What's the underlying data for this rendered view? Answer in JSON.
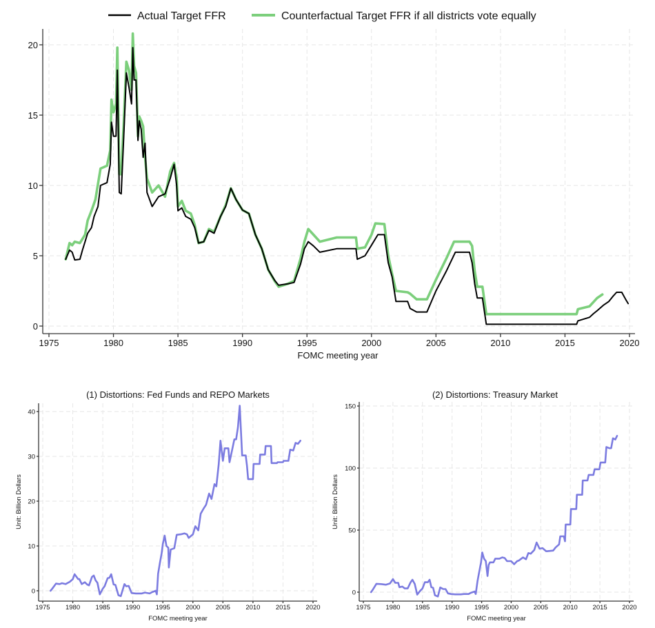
{
  "chart_data": [
    {
      "type": "line",
      "title": "",
      "xlabel": "FOMC meeting year",
      "ylabel": "",
      "xlim": [
        1975,
        2020
      ],
      "ylim": [
        0,
        20
      ],
      "xticks": [
        "1975",
        "1980",
        "1985",
        "1990",
        "1995",
        "2000",
        "2005",
        "2010",
        "2015",
        "2020"
      ],
      "yticks": [
        "0",
        "5",
        "10",
        "15",
        "20"
      ],
      "grid": true,
      "legend_position": "top",
      "series": [
        {
          "name": "Actual Target FFR",
          "color": "#000000",
          "x": [
            1976.3,
            1976.6,
            1976.8,
            1977.0,
            1977.4,
            1977.6,
            1977.8,
            1978.0,
            1978.3,
            1978.5,
            1978.8,
            1979.0,
            1979.5,
            1979.75,
            1979.85,
            1980.0,
            1980.2,
            1980.3,
            1980.45,
            1980.6,
            1980.8,
            1981.0,
            1981.2,
            1981.4,
            1981.5,
            1981.6,
            1981.75,
            1981.9,
            1982.0,
            1982.15,
            1982.3,
            1982.45,
            1982.6,
            1983.0,
            1983.5,
            1984.0,
            1984.4,
            1984.7,
            1984.9,
            1985.0,
            1985.3,
            1985.6,
            1986.0,
            1986.3,
            1986.6,
            1987.0,
            1987.4,
            1987.8,
            1988.3,
            1988.7,
            1989.1,
            1989.5,
            1990.0,
            1990.5,
            1991.0,
            1991.5,
            1992.0,
            1992.5,
            1992.8,
            1993.5,
            1994.0,
            1994.5,
            1994.8,
            1995.1,
            1995.5,
            1996.0,
            1997.3,
            1998.8,
            1998.9,
            1999.5,
            2000.0,
            2000.5,
            2001.0,
            2001.3,
            2001.6,
            2001.9,
            2002.8,
            2003.0,
            2003.5,
            2004.3,
            2005.0,
            2005.8,
            2006.5,
            2007.6,
            2007.8,
            2008.0,
            2008.2,
            2008.6,
            2008.9,
            2015.9,
            2016.0,
            2016.9,
            2017.2,
            2017.5,
            2018.0,
            2018.4,
            2018.7,
            2019.0,
            2019.4,
            2019.7,
            2019.9
          ],
          "y": [
            4.75,
            5.4,
            5.25,
            4.7,
            4.75,
            5.4,
            6.0,
            6.6,
            7.0,
            7.8,
            8.5,
            10.0,
            10.2,
            11.5,
            14.5,
            13.5,
            13.5,
            18.2,
            9.5,
            9.4,
            13.5,
            18.0,
            17.0,
            15.8,
            19.8,
            17.5,
            17.5,
            13.2,
            14.6,
            14.0,
            12.0,
            13.0,
            9.5,
            8.5,
            9.2,
            9.4,
            10.5,
            11.5,
            10.0,
            8.2,
            8.4,
            7.8,
            7.6,
            7.0,
            5.9,
            6.0,
            6.8,
            6.6,
            7.8,
            8.5,
            9.8,
            9.0,
            8.25,
            8.0,
            6.5,
            5.5,
            4.0,
            3.25,
            2.9,
            3.0,
            3.1,
            4.4,
            5.5,
            6.0,
            5.7,
            5.25,
            5.5,
            5.5,
            4.75,
            5.0,
            5.75,
            6.5,
            6.5,
            4.5,
            3.5,
            1.75,
            1.75,
            1.25,
            1.0,
            1.0,
            2.5,
            3.9,
            5.25,
            5.25,
            4.5,
            3.0,
            2.0,
            2.0,
            0.125,
            0.125,
            0.375,
            0.625,
            0.875,
            1.1,
            1.5,
            1.75,
            2.1,
            2.4,
            2.4,
            1.9,
            1.6
          ]
        },
        {
          "name": "Counterfactual Target FFR if all districts vote equally",
          "color": "#7ccf7c",
          "x": [
            1976.3,
            1976.6,
            1976.8,
            1977.0,
            1977.4,
            1977.8,
            1978.0,
            1978.3,
            1978.6,
            1979.0,
            1979.5,
            1979.75,
            1979.85,
            1980.0,
            1980.2,
            1980.3,
            1980.45,
            1980.6,
            1980.8,
            1981.0,
            1981.2,
            1981.4,
            1981.5,
            1981.6,
            1981.75,
            1981.9,
            1982.0,
            1982.15,
            1982.3,
            1982.45,
            1982.6,
            1983.0,
            1983.5,
            1984.0,
            1984.4,
            1984.7,
            1984.9,
            1985.0,
            1985.3,
            1985.6,
            1986.0,
            1986.3,
            1986.6,
            1987.0,
            1987.4,
            1987.8,
            1988.3,
            1988.7,
            1989.1,
            1989.5,
            1990.0,
            1990.5,
            1991.0,
            1991.5,
            1992.0,
            1992.5,
            1992.8,
            1993.5,
            1994.0,
            1994.5,
            1994.8,
            1995.1,
            1995.5,
            1996.0,
            1997.3,
            1998.8,
            1998.9,
            1999.5,
            2000.0,
            2000.3,
            2001.0,
            2001.3,
            2001.6,
            2001.9,
            2002.8,
            2003.0,
            2003.5,
            2004.3,
            2005.0,
            2005.8,
            2006.4,
            2007.6,
            2007.8,
            2008.0,
            2008.2,
            2008.6,
            2008.9,
            2015.9,
            2016.0,
            2016.9,
            2017.2,
            2017.5,
            2017.9
          ],
          "y": [
            4.75,
            5.9,
            5.75,
            6.0,
            5.9,
            6.5,
            7.5,
            8.2,
            9.0,
            11.2,
            11.4,
            12.5,
            16.1,
            15.2,
            15.8,
            19.8,
            10.8,
            10.8,
            14.5,
            18.8,
            18.2,
            16.8,
            20.8,
            18.5,
            18.0,
            13.5,
            14.9,
            14.6,
            14.2,
            12.0,
            10.5,
            9.5,
            10.0,
            9.2,
            11.0,
            11.6,
            10.5,
            8.5,
            8.9,
            8.2,
            8.0,
            7.2,
            5.9,
            6.0,
            6.9,
            6.7,
            7.8,
            8.6,
            9.8,
            9.0,
            8.25,
            8.0,
            6.5,
            5.5,
            4.0,
            3.2,
            2.8,
            3.0,
            3.2,
            4.8,
            6.0,
            6.9,
            6.5,
            6.0,
            6.3,
            6.3,
            5.5,
            5.6,
            6.5,
            7.3,
            7.25,
            5.0,
            3.7,
            2.5,
            2.4,
            2.3,
            1.9,
            1.9,
            3.3,
            4.8,
            6.0,
            6.0,
            5.7,
            3.9,
            2.8,
            2.8,
            0.85,
            0.85,
            1.2,
            1.4,
            1.7,
            2.0,
            2.25
          ]
        }
      ]
    },
    {
      "type": "line",
      "title": "(1) Distortions: Fed Funds and REPO Markets",
      "xlabel": "FOMC meeting year",
      "ylabel": "Unit: Billion Dollars",
      "xlim": [
        1975,
        2020
      ],
      "ylim": [
        0,
        40
      ],
      "xticks": [
        "1975",
        "1980",
        "1985",
        "1990",
        "1995",
        "2000",
        "2005",
        "2010",
        "2015",
        "2020"
      ],
      "yticks": [
        "0",
        "10",
        "20",
        "30",
        "40"
      ],
      "grid": true,
      "series": [
        {
          "name": "Distortions: Fed Funds and REPO Markets",
          "color": "#7b7be0",
          "x": [
            1976.3,
            1976.6,
            1977.2,
            1977.8,
            1978.2,
            1978.8,
            1979.5,
            1980.0,
            1980.3,
            1980.9,
            1981.1,
            1981.5,
            1982.0,
            1982.4,
            1982.7,
            1983.2,
            1983.5,
            1983.8,
            1984.1,
            1984.5,
            1985.0,
            1985.3,
            1985.8,
            1986.1,
            1986.4,
            1986.8,
            1987.1,
            1987.6,
            1988.0,
            1988.6,
            1988.9,
            1989.3,
            1989.8,
            1990.5,
            1991.5,
            1992.0,
            1992.8,
            1993.2,
            1993.8,
            1994.0,
            1994.2,
            1994.5,
            1994.8,
            1995.0,
            1995.3,
            1995.6,
            1995.9,
            1996.0,
            1996.3,
            1996.9,
            1997.3,
            1998.0,
            1998.6,
            1999.0,
            1999.3,
            2000.0,
            2000.4,
            2000.9,
            2001.3,
            2001.8,
            2002.2,
            2002.7,
            2003.1,
            2003.6,
            2003.9,
            2004.3,
            2004.6,
            2005.0,
            2005.3,
            2005.9,
            2006.1,
            2006.9,
            2007.2,
            2007.5,
            2007.8,
            2008.2,
            2008.8,
            2009.0,
            2009.2,
            2010.0,
            2010.1,
            2011.1,
            2011.2,
            2012.0,
            2012.1,
            2013.0,
            2013.1,
            2014.0,
            2014.1,
            2015.0,
            2015.1,
            2015.9,
            2016.2,
            2016.7,
            2017.1,
            2017.5,
            2017.9
          ],
          "y": [
            0,
            0.5,
            1.6,
            1.5,
            1.7,
            1.5,
            2.0,
            2.6,
            3.7,
            2.6,
            2.6,
            1.5,
            1.9,
            1.4,
            1.2,
            3.1,
            3.4,
            2.3,
            1.8,
            -0.8,
            0.5,
            1.0,
            2.8,
            2.9,
            3.7,
            1.4,
            1.3,
            -1.0,
            -1.2,
            1.5,
            1.0,
            1.1,
            -0.5,
            -0.6,
            -0.6,
            -0.4,
            -0.6,
            -0.3,
            0.0,
            -0.8,
            3.8,
            6.2,
            8.4,
            10.5,
            12.3,
            10.0,
            9.6,
            5.2,
            9.2,
            9.5,
            12.5,
            12.6,
            12.8,
            12.6,
            11.8,
            12.6,
            14.4,
            13.5,
            17.2,
            18.4,
            19.2,
            21.7,
            20.5,
            23.8,
            23.3,
            28.2,
            33.5,
            29.0,
            31.8,
            31.8,
            28.7,
            33.8,
            33.8,
            36.5,
            41.3,
            30.2,
            30.2,
            27.9,
            24.9,
            24.9,
            28.3,
            28.3,
            30.4,
            30.4,
            32.3,
            32.3,
            28.5,
            28.5,
            28.7,
            28.7,
            29.0,
            29.0,
            31.5,
            31.3,
            33.0,
            32.8,
            33.5
          ]
        }
      ]
    },
    {
      "type": "line",
      "title": "(2) Distortions: Treasury Market",
      "xlabel": "FOMC meeting year",
      "ylabel": "Unit: Billion Dollars",
      "xlim": [
        1975,
        2020
      ],
      "ylim": [
        0,
        150
      ],
      "xticks": [
        "1975",
        "1980",
        "1985",
        "1990",
        "1995",
        "2000",
        "2005",
        "2010",
        "2015",
        "2020"
      ],
      "yticks": [
        "0",
        "50",
        "100",
        "150"
      ],
      "grid": true,
      "series": [
        {
          "name": "Distortions: Treasury Market",
          "color": "#7b7be0",
          "x": [
            1976.3,
            1976.6,
            1977.2,
            1978.0,
            1978.8,
            1979.5,
            1980.0,
            1980.4,
            1980.9,
            1981.1,
            1981.6,
            1982.0,
            1982.5,
            1983.0,
            1983.3,
            1983.7,
            1984.1,
            1984.6,
            1985.0,
            1985.4,
            1985.9,
            1986.2,
            1986.5,
            1986.8,
            1987.1,
            1987.6,
            1988.0,
            1988.5,
            1988.9,
            1989.3,
            1989.8,
            1990.5,
            1991.5,
            1992.0,
            1992.8,
            1993.2,
            1993.8,
            1994.0,
            1994.3,
            1994.6,
            1994.9,
            1995.1,
            1995.4,
            1995.7,
            1996.0,
            1996.2,
            1996.4,
            1997.0,
            1997.3,
            1998.0,
            1998.5,
            1998.9,
            1999.3,
            2000.0,
            2000.5,
            2001.0,
            2001.3,
            2002.0,
            2002.5,
            2002.9,
            2003.3,
            2003.9,
            2004.3,
            2004.8,
            2005.3,
            2005.9,
            2006.1,
            2007.1,
            2007.5,
            2008.1,
            2008.3,
            2008.9,
            2009.1,
            2009.2,
            2010.0,
            2010.1,
            2011.0,
            2011.1,
            2012.0,
            2012.1,
            2012.9,
            2013.1,
            2013.9,
            2014.1,
            2014.9,
            2015.1,
            2015.9,
            2016.1,
            2016.6,
            2016.9,
            2017.2,
            2017.6,
            2017.9
          ],
          "y": [
            0,
            2.0,
            6.7,
            6.5,
            6.0,
            7.0,
            10.5,
            7.5,
            7.5,
            4.0,
            4.5,
            3.0,
            3.0,
            8.0,
            10.0,
            6.5,
            -2.0,
            1.0,
            3.0,
            8.0,
            8.0,
            10.0,
            4.0,
            3.5,
            -2.5,
            -3.5,
            3.8,
            2.5,
            2.5,
            -1.0,
            -1.5,
            -1.8,
            -1.8,
            -1.5,
            -1.5,
            -0.5,
            0.5,
            -1.5,
            9.0,
            16.5,
            24.0,
            32.0,
            27.0,
            25.0,
            13.0,
            22.0,
            24.0,
            24.0,
            27.0,
            27.0,
            28.0,
            27.5,
            25.0,
            25.0,
            22.5,
            25.0,
            25.5,
            28.0,
            26.5,
            31.5,
            31.0,
            34.0,
            40.0,
            35.0,
            35.5,
            33.0,
            33.0,
            33.5,
            36.0,
            38.5,
            45.0,
            45.0,
            41.0,
            54.5,
            54.5,
            67.0,
            67.0,
            78.5,
            78.5,
            90.0,
            90.0,
            94.5,
            94.5,
            99.0,
            99.0,
            104.5,
            104.5,
            117.0,
            116.0,
            116.0,
            124.0,
            123.0,
            126.0
          ]
        }
      ]
    }
  ]
}
